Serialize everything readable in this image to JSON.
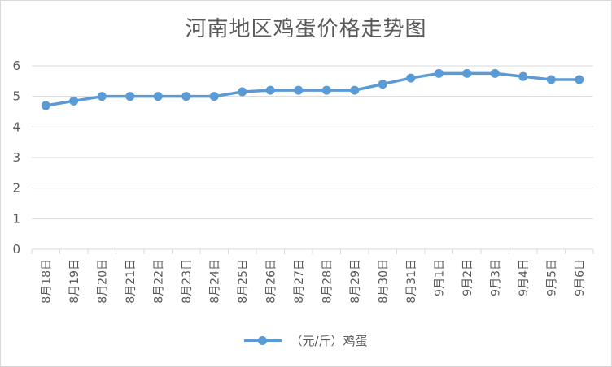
{
  "chart_data": {
    "type": "line",
    "title": "河南地区鸡蛋价格走势图",
    "xlabel": "",
    "ylabel": "",
    "ylim": [
      0,
      6
    ],
    "yticks": [
      "0",
      "1",
      "2",
      "3",
      "4",
      "5",
      "6"
    ],
    "grid": true,
    "legend_position": "bottom",
    "categories": [
      "8月18日",
      "8月19日",
      "8月20日",
      "8月21日",
      "8月22日",
      "8月23日",
      "8月24日",
      "8月25日",
      "8月26日",
      "8月27日",
      "8月28日",
      "8月29日",
      "8月30日",
      "8月31日",
      "9月1日",
      "9月2日",
      "9月3日",
      "9月4日",
      "9月5日",
      "9月6日"
    ],
    "series": [
      {
        "name": "（元/斤）鸡蛋",
        "color": "#5b9bd5",
        "values": [
          4.7,
          4.85,
          5.0,
          5.0,
          5.0,
          5.0,
          5.0,
          5.15,
          5.2,
          5.2,
          5.2,
          5.2,
          5.4,
          5.6,
          5.75,
          5.75,
          5.75,
          5.65,
          5.55,
          5.55
        ]
      }
    ]
  }
}
